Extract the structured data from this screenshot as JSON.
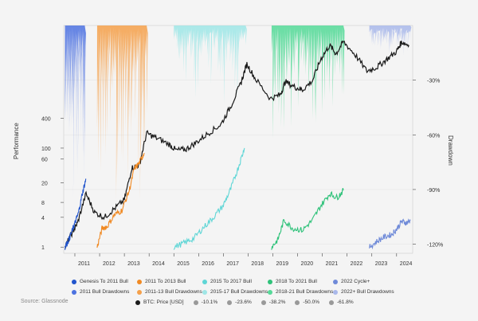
{
  "source": "Source: Glassnode",
  "chart_data": {
    "type": "line",
    "ylabel_left": "Performance",
    "ylabel_right": "Drawdown",
    "yscale_left": "log",
    "yticks_left": [
      1,
      4,
      8,
      20,
      60,
      100,
      400
    ],
    "yticks_right": [
      "-30%",
      "-60%",
      "-90%",
      "-120%"
    ],
    "xticks": [
      "2011",
      "2012",
      "2013",
      "2014",
      "2015",
      "2016",
      "2017",
      "2018",
      "2019",
      "2020",
      "2021",
      "2022",
      "2023",
      "2024"
    ],
    "colors": {
      "btc": "#1a1a1a",
      "c2011": "#2255cc",
      "c2013": "#f08a24",
      "c2017": "#5fd6d6",
      "c2021": "#2fc27a",
      "c2022": "#6f8ad8",
      "d2011": "#4d72e0",
      "d2013": "#f5a04a",
      "d2017": "#9fe6e6",
      "d2021": "#55d998",
      "d2022": "#a9b8ea"
    },
    "series": [
      {
        "name": "BTC: Price [USD]",
        "key": "btc",
        "x": [
          2010.6,
          2010.9,
          2011.1,
          2011.45,
          2011.8,
          2012.2,
          2012.6,
          2013.0,
          2013.3,
          2013.6,
          2013.9,
          2014.3,
          2014.8,
          2015.1,
          2015.5,
          2015.9,
          2016.4,
          2016.9,
          2017.3,
          2017.7,
          2017.95,
          2018.3,
          2018.9,
          2019.3,
          2019.5,
          2019.9,
          2020.2,
          2020.6,
          2020.95,
          2021.3,
          2021.55,
          2021.85,
          2022.3,
          2022.8,
          2023.2,
          2023.6,
          2024.0,
          2024.2,
          2024.5
        ],
        "y": [
          1,
          2,
          3,
          12,
          5,
          4,
          6,
          9,
          40,
          45,
          200,
          160,
          120,
          90,
          95,
          130,
          200,
          300,
          700,
          2000,
          5000,
          2500,
          1000,
          1200,
          2200,
          1700,
          1500,
          2300,
          6500,
          12000,
          8000,
          14000,
          8000,
          3600,
          4300,
          6200,
          9000,
          14000,
          12000
        ]
      },
      {
        "name": "Genesis To 2011 Bull",
        "key": "c2011",
        "x": [
          2010.6,
          2010.75,
          2010.9,
          2011.0,
          2011.15,
          2011.3,
          2011.45
        ],
        "y": [
          1,
          1.4,
          2.2,
          3,
          5,
          12,
          24
        ]
      },
      {
        "name": "2011 To 2013 Bull",
        "key": "c2013",
        "x": [
          2011.9,
          2012.1,
          2012.3,
          2012.6,
          2012.9,
          2013.2,
          2013.4,
          2013.6,
          2013.8
        ],
        "y": [
          1,
          2.4,
          2.6,
          4.5,
          5.5,
          14,
          38,
          50,
          80
        ]
      },
      {
        "name": "2015 To 2017 Bull",
        "key": "c2017",
        "x": [
          2015.0,
          2015.4,
          2015.8,
          2016.2,
          2016.6,
          2017.0,
          2017.3,
          2017.6,
          2017.85
        ],
        "y": [
          1,
          1.2,
          1.5,
          2.5,
          4,
          7,
          15,
          40,
          100
        ]
      },
      {
        "name": "2018 To 2021 Bull",
        "key": "c2021",
        "x": [
          2018.95,
          2019.2,
          2019.45,
          2019.8,
          2020.2,
          2020.6,
          2020.95,
          2021.3,
          2021.6,
          2021.85
        ],
        "y": [
          1,
          1.4,
          3.5,
          2.4,
          2.2,
          3.5,
          7,
          12,
          10,
          14
        ]
      },
      {
        "name": "2022 Cycle+",
        "key": "c2022",
        "x": [
          2022.9,
          2023.2,
          2023.5,
          2023.8,
          2024.0,
          2024.2,
          2024.4,
          2024.55
        ],
        "y": [
          1,
          1.3,
          1.6,
          1.8,
          2.3,
          3.3,
          3.1,
          3.4
        ]
      }
    ],
    "drawdowns": [
      {
        "name": "2011 Bull Drawdowns",
        "key": "d2011",
        "x": [
          2010.6,
          2011.4
        ],
        "depth": [
          -45,
          -85
        ]
      },
      {
        "name": "2011-13 Bull Drawdowns",
        "key": "d2013",
        "x": [
          2011.9,
          2013.9
        ],
        "depth": [
          -30,
          -90
        ]
      },
      {
        "name": "2015-17 Bull Drawdowns",
        "key": "d2017",
        "x": [
          2015.0,
          2017.9
        ],
        "depth": [
          -10,
          -40
        ]
      },
      {
        "name": "2018-21 Bull Drawdowns",
        "key": "d2021",
        "x": [
          2018.95,
          2021.85
        ],
        "depth": [
          -20,
          -60
        ]
      },
      {
        "name": "2022+ Bull Drawdowns",
        "key": "d2022",
        "x": [
          2022.9,
          2024.55
        ],
        "depth": [
          -5,
          -15
        ]
      }
    ],
    "legend_row1": [
      {
        "label": "Genesis To 2011 Bull",
        "key": "c2011"
      },
      {
        "label": "2011 To 2013 Bull",
        "key": "c2013"
      },
      {
        "label": "2015 To 2017 Bull",
        "key": "c2017"
      },
      {
        "label": "2018 To 2021 Bull",
        "key": "c2021"
      },
      {
        "label": "2022 Cycle+",
        "key": "c2022"
      }
    ],
    "legend_row2": [
      {
        "label": "2011 Bull Drawdowns",
        "key": "d2011"
      },
      {
        "label": "2011-13 Bull Drawdowns",
        "key": "d2013"
      },
      {
        "label": "2015-17 Bull Drawdowns",
        "key": "d2017"
      },
      {
        "label": "2018-21 Bull Drawdowns",
        "key": "d2021"
      },
      {
        "label": "2022+ Bull Drawdowns",
        "key": "d2022"
      }
    ],
    "legend_row3": [
      {
        "label": "BTC: Price [USD]",
        "color": "#1a1a1a"
      },
      {
        "label": "-10.1%",
        "color": "#999999"
      },
      {
        "label": "-23.6%",
        "color": "#999999"
      },
      {
        "label": "-38.2%",
        "color": "#999999"
      },
      {
        "label": "-50.0%",
        "color": "#999999"
      },
      {
        "label": "-61.8%",
        "color": "#999999"
      }
    ]
  }
}
